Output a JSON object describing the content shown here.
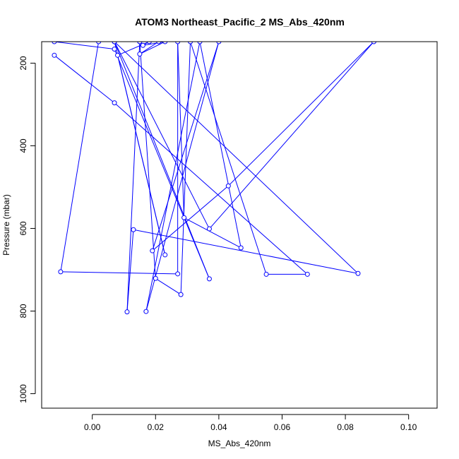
{
  "chart_data": {
    "type": "line",
    "title": "ATOM3 Northeast_Pacific_2 MS_Abs_420nm",
    "xlabel": "MS_Abs_420nm",
    "ylabel": "Pressure (mbar)",
    "xlim": [
      -0.016,
      0.109
    ],
    "ylim": [
      1035,
      148
    ],
    "y_reversed": true,
    "grid": false,
    "series_color": "#0000ff",
    "x_ticks": [
      0.0,
      0.02,
      0.04,
      0.06,
      0.08,
      0.1
    ],
    "x_tick_labels": [
      "0.00",
      "0.02",
      "0.04",
      "0.06",
      "0.08",
      "0.10"
    ],
    "y_ticks": [
      200,
      400,
      600,
      800,
      1000
    ],
    "y_tick_labels": [
      "200",
      "400",
      "600",
      "800",
      "1000"
    ],
    "points": [
      {
        "x": -0.012,
        "y": 181
      },
      {
        "x": 0.007,
        "y": 296
      },
      {
        "x": 0.068,
        "y": 711
      },
      {
        "x": 0.055,
        "y": 711
      },
      {
        "x": 0.031,
        "y": 148
      },
      {
        "x": 0.028,
        "y": 760
      },
      {
        "x": 0.02,
        "y": 721
      },
      {
        "x": 0.015,
        "y": 148
      },
      {
        "x": 0.011,
        "y": 802
      },
      {
        "x": 0.013,
        "y": 603
      },
      {
        "x": 0.084,
        "y": 709
      },
      {
        "x": 0.007,
        "y": 148
      },
      {
        "x": 0.037,
        "y": 601
      },
      {
        "x": 0.089,
        "y": 148
      },
      {
        "x": 0.043,
        "y": 497
      },
      {
        "x": 0.019,
        "y": 654
      },
      {
        "x": 0.04,
        "y": 148
      },
      {
        "x": 0.017,
        "y": 801
      },
      {
        "x": 0.034,
        "y": 148
      },
      {
        "x": 0.047,
        "y": 647
      },
      {
        "x": 0.029,
        "y": 574
      },
      {
        "x": 0.027,
        "y": 148
      },
      {
        "x": 0.027,
        "y": 710
      },
      {
        "x": -0.01,
        "y": 705
      },
      {
        "x": 0.002,
        "y": 148
      },
      {
        "x": -0.012,
        "y": 148
      },
      {
        "x": 0.007,
        "y": 166
      },
      {
        "x": 0.037,
        "y": 722
      },
      {
        "x": 0.007,
        "y": 148
      },
      {
        "x": 0.023,
        "y": 664
      },
      {
        "x": 0.008,
        "y": 181
      },
      {
        "x": 0.018,
        "y": 148
      },
      {
        "x": 0.016,
        "y": 157
      },
      {
        "x": 0.023,
        "y": 148
      },
      {
        "x": 0.015,
        "y": 178
      },
      {
        "x": 0.021,
        "y": 148
      },
      {
        "x": 0.015,
        "y": 148
      }
    ]
  }
}
